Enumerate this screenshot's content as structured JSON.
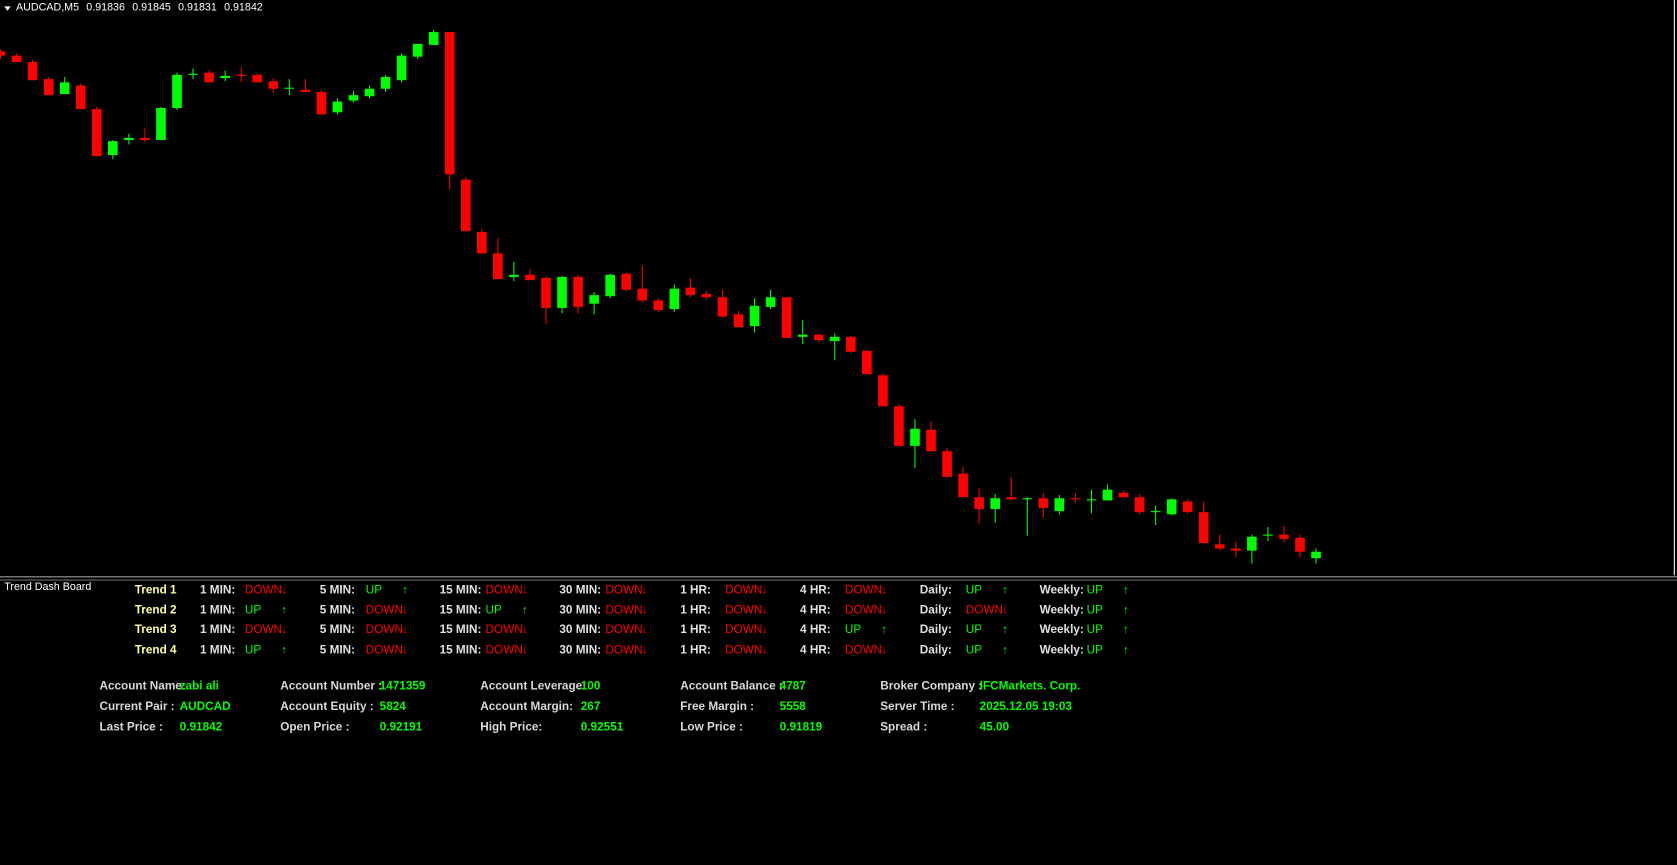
{
  "header": {
    "symbol": "AUDCAD,M5"
  },
  "chart_data": {
    "type": "candlestick",
    "up_color": "#00ff00",
    "down_color": "#ff0000",
    "ylim": [
      0.9182,
      0.92343
    ],
    "open": [
      0.9231,
      0.92306,
      0.923,
      0.92284,
      0.9227,
      0.92278,
      0.92256,
      0.92213,
      0.92227,
      0.92229,
      0.92227,
      0.92257,
      0.92288,
      0.9229,
      0.92285,
      0.92288,
      0.92288,
      0.92282,
      0.92276,
      0.92274,
      0.92272,
      0.92253,
      0.92264,
      0.92268,
      0.92275,
      0.92283,
      0.92305,
      0.92316,
      0.92328,
      0.9219,
      0.92141,
      0.92121,
      0.92099,
      0.92101,
      0.92098,
      0.9207,
      0.92099,
      0.92074,
      0.92081,
      0.92102,
      0.92088,
      0.92077,
      0.92069,
      0.92089,
      0.92083,
      0.9208,
      0.92064,
      0.92053,
      0.92071,
      0.9208,
      0.92043,
      0.92045,
      0.92039,
      0.92043,
      0.9203,
      0.92007,
      0.91978,
      0.91941,
      0.91956,
      0.91936,
      0.91915,
      0.91893,
      0.91882,
      0.91893,
      0.91892,
      0.91892,
      0.9188,
      0.91892,
      0.9189,
      0.9189,
      0.91897,
      0.91893,
      0.91879,
      0.91877,
      0.91889,
      0.91879,
      0.91849,
      0.91845,
      0.91843,
      0.91857,
      0.91858,
      0.91855,
      0.91836
    ],
    "high": [
      0.92312,
      0.92308,
      0.92302,
      0.92286,
      0.92286,
      0.9228,
      0.92258,
      0.92227,
      0.92233,
      0.92238,
      0.92258,
      0.9229,
      0.92294,
      0.92292,
      0.92292,
      0.92295,
      0.92289,
      0.92285,
      0.92284,
      0.92284,
      0.92274,
      0.92266,
      0.92273,
      0.92278,
      0.92288,
      0.92308,
      0.92317,
      0.9233,
      0.92328,
      0.92192,
      0.92144,
      0.92135,
      0.92113,
      0.92106,
      0.921,
      0.921,
      0.92101,
      0.92085,
      0.92102,
      0.92103,
      0.9211,
      0.92079,
      0.92092,
      0.92098,
      0.92086,
      0.92087,
      0.92067,
      0.92079,
      0.92087,
      0.9208,
      0.92059,
      0.92046,
      0.92046,
      0.92044,
      0.9203,
      0.92009,
      0.9198,
      0.91966,
      0.91964,
      0.91939,
      0.91921,
      0.91901,
      0.91896,
      0.91912,
      0.91893,
      0.91897,
      0.91895,
      0.91897,
      0.919,
      0.91905,
      0.91899,
      0.91896,
      0.91885,
      0.91892,
      0.91891,
      0.91889,
      0.91858,
      0.91851,
      0.91858,
      0.91865,
      0.91866,
      0.91858,
      0.91845
    ],
    "low": [
      0.92303,
      0.923,
      0.92283,
      0.92269,
      0.9227,
      0.92256,
      0.92212,
      0.92209,
      0.92223,
      0.92225,
      0.92227,
      0.92255,
      0.92284,
      0.92281,
      0.92282,
      0.92281,
      0.92281,
      0.92271,
      0.92269,
      0.92272,
      0.92251,
      0.92251,
      0.92262,
      0.92266,
      0.92272,
      0.92281,
      0.92303,
      0.92316,
      0.92181,
      0.92141,
      0.92121,
      0.92097,
      0.92095,
      0.92096,
      0.92055,
      0.92065,
      0.92065,
      0.92064,
      0.92079,
      0.92086,
      0.92075,
      0.92066,
      0.92066,
      0.9208,
      0.92078,
      0.92061,
      0.92052,
      0.92047,
      0.92069,
      0.92042,
      0.92036,
      0.92038,
      0.92021,
      0.92028,
      0.92008,
      0.91978,
      0.91941,
      0.9192,
      0.91936,
      0.91912,
      0.91893,
      0.91868,
      0.91869,
      0.9189,
      0.91857,
      0.91874,
      0.91877,
      0.91888,
      0.91878,
      0.9189,
      0.91893,
      0.91877,
      0.91867,
      0.91876,
      0.91878,
      0.9185,
      0.91843,
      0.91837,
      0.91831,
      0.91852,
      0.91851,
      0.91837,
      0.91831
    ],
    "close": [
      0.92306,
      0.923,
      0.92283,
      0.92269,
      0.92281,
      0.92256,
      0.92212,
      0.92226,
      0.92229,
      0.92227,
      0.92257,
      0.92288,
      0.92289,
      0.92281,
      0.92287,
      0.92287,
      0.92281,
      0.92275,
      0.92276,
      0.92272,
      0.92251,
      0.92263,
      0.92269,
      0.92275,
      0.92286,
      0.92306,
      0.92317,
      0.92328,
      0.92195,
      0.92142,
      0.92121,
      0.92097,
      0.92101,
      0.92096,
      0.9207,
      0.92099,
      0.92071,
      0.92082,
      0.92101,
      0.92087,
      0.92077,
      0.92068,
      0.92088,
      0.92082,
      0.9208,
      0.92062,
      0.92052,
      0.92072,
      0.9208,
      0.92042,
      0.92045,
      0.9204,
      0.92043,
      0.92029,
      0.92008,
      0.91978,
      0.91941,
      0.91957,
      0.91936,
      0.91912,
      0.91893,
      0.91882,
      0.91892,
      0.91891,
      0.91892,
      0.91883,
      0.91892,
      0.91891,
      0.91891,
      0.919,
      0.91893,
      0.91879,
      0.9188,
      0.91891,
      0.91879,
      0.9185,
      0.91845,
      0.91843,
      0.91856,
      0.91858,
      0.91854,
      0.91842,
      0.91842
    ]
  },
  "dashboard": {
    "title": "Trend Dash Board",
    "timeframes": [
      "1 MIN:",
      "5 MIN:",
      "15 MIN:",
      "30 MIN:",
      "1 HR:",
      "4 HR:",
      "Daily:",
      "Weekly:"
    ],
    "trend_colors": {
      "UP": "#00ff00",
      "DOWN": "#ff0000"
    },
    "trend_arrows": {
      "UP": "↑",
      "DOWN": "↓"
    },
    "rows": [
      {
        "label": "Trend 1",
        "values": [
          "DOWN",
          "UP",
          "DOWN",
          "DOWN",
          "DOWN",
          "DOWN",
          "UP",
          "UP"
        ]
      },
      {
        "label": "Trend 2",
        "values": [
          "UP",
          "DOWN",
          "UP",
          "DOWN",
          "DOWN",
          "DOWN",
          "DOWN",
          "UP"
        ]
      },
      {
        "label": "Trend 3",
        "values": [
          "DOWN",
          "DOWN",
          "DOWN",
          "DOWN",
          "DOWN",
          "UP",
          "UP",
          "UP"
        ]
      },
      {
        "label": "Trend 4",
        "values": [
          "UP",
          "DOWN",
          "DOWN",
          "DOWN",
          "DOWN",
          "DOWN",
          "UP",
          "UP"
        ]
      }
    ]
  },
  "account": {
    "rows": [
      [
        {
          "label": "Account Name:",
          "value": "zabi ali"
        },
        {
          "label": "Account Number :",
          "value": "1471359"
        },
        {
          "label": "Account Leverage:",
          "value": "100"
        },
        {
          "label": "Account Balance :",
          "value": "4787"
        },
        {
          "label": "Broker Company :",
          "value": "IFCMarkets. Corp."
        }
      ],
      [
        {
          "label": "Current Pair :",
          "value": "AUDCAD"
        },
        {
          "label": "Account Equity :",
          "value": "5824"
        },
        {
          "label": "Account Margin:",
          "value": "267"
        },
        {
          "label": "Free Margin :",
          "value": "5558"
        },
        {
          "label": "Server Time :",
          "value": "2025.12.05 19:03"
        }
      ],
      [
        {
          "label": "Last Price :",
          "value": "0.91842"
        },
        {
          "label": "Open Price :",
          "value": "0.92191"
        },
        {
          "label": "High Price:",
          "value": "0.92551"
        },
        {
          "label": "Low Price :",
          "value": "0.91819"
        },
        {
          "label": "Spread :",
          "value": "45.00"
        }
      ]
    ]
  }
}
